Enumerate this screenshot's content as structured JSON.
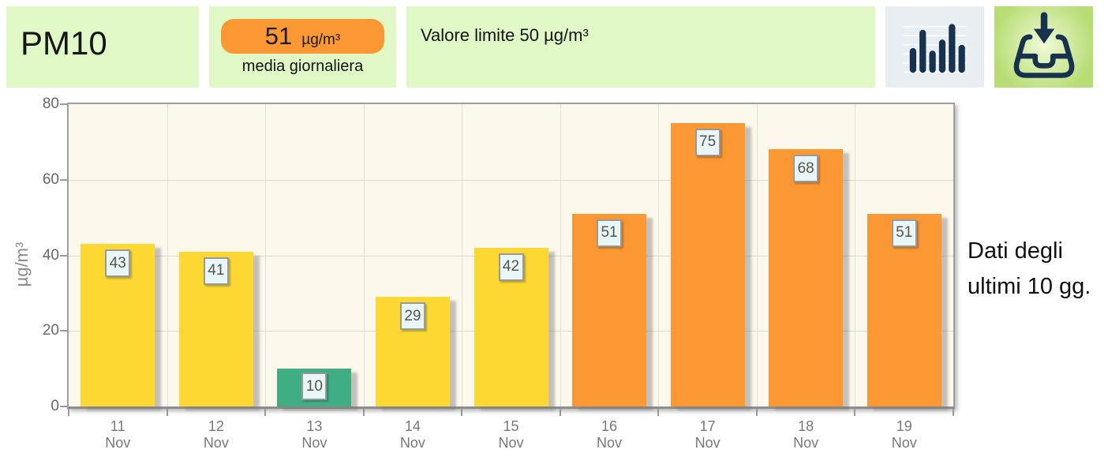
{
  "header": {
    "pollutant": "PM10",
    "daily_average": {
      "value": "51",
      "unit": "µg/m³",
      "caption": "media giornaliera"
    },
    "limit_label": "Valore limite 50 µg/m³",
    "icons": {
      "chart": "bar-chart-icon",
      "download": "download-inbox-icon"
    }
  },
  "side_note": "Dati degli ultimi 10 gg.",
  "colors": {
    "panel_bg": "#dff8c6",
    "pill_orange": "#fb9833",
    "plot_bg": "#fdf8ec",
    "bar_palette": {
      "yellow": "#fdd832",
      "green": "#3fae85",
      "orange": "#fb9833"
    },
    "icon_navy": "#17324f",
    "icon_chart_bg": "#e9eef2",
    "icon_dl_bg": "#b7dd74"
  },
  "chart_data": {
    "type": "bar",
    "title": "",
    "categories": [
      "11 Nov",
      "12 Nov",
      "13 Nov",
      "14 Nov",
      "15 Nov",
      "16 Nov",
      "17 Nov",
      "18 Nov",
      "19 Nov"
    ],
    "day_labels": [
      "11",
      "12",
      "13",
      "14",
      "15",
      "16",
      "17",
      "18",
      "19"
    ],
    "month_label": "Nov",
    "values": [
      43,
      41,
      10,
      29,
      42,
      51,
      75,
      68,
      51
    ],
    "bar_colors": [
      "yellow",
      "yellow",
      "green",
      "yellow",
      "yellow",
      "orange",
      "orange",
      "orange",
      "orange"
    ],
    "value_labels": [
      43,
      41,
      10,
      29,
      42,
      51,
      75,
      68,
      51
    ],
    "xlabel": "",
    "ylabel": "µg/m³",
    "ylim": [
      0,
      80
    ],
    "yticks": [
      0,
      20,
      40,
      60,
      80
    ],
    "grid": true,
    "legend": false
  }
}
